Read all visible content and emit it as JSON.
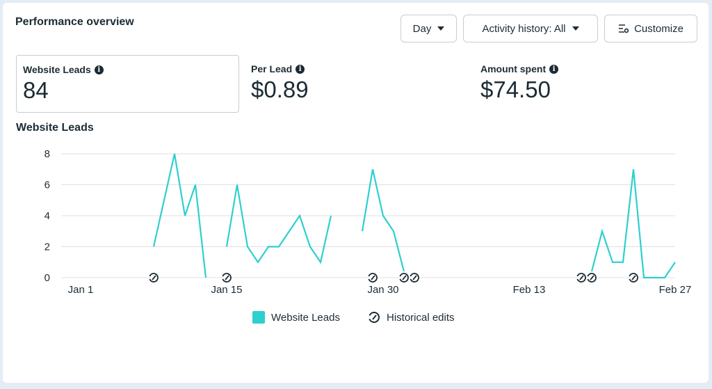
{
  "header": {
    "title": "Performance overview",
    "day_label": "Day",
    "activity_label": "Activity history: All",
    "customize_label": "Customize"
  },
  "metrics": [
    {
      "label": "Website Leads",
      "value": "84"
    },
    {
      "label": "Per Lead",
      "value": "$0.89"
    },
    {
      "label": "Amount spent",
      "value": "$74.50"
    }
  ],
  "chart_title": "Website Leads",
  "colors": {
    "line": "#2ecfcf",
    "grid": "#dddfe2",
    "text": "#1c2b33"
  },
  "legend": {
    "leads": "Website Leads",
    "edits": "Historical edits"
  },
  "chart_data": {
    "type": "line",
    "title": "Website Leads",
    "xlabel": "",
    "ylabel": "",
    "ylim": [
      0,
      8
    ],
    "yticks": [
      0,
      2,
      4,
      6,
      8
    ],
    "xticks": [
      {
        "day": 0,
        "label": "Jan 1"
      },
      {
        "day": 14,
        "label": "Jan 15"
      },
      {
        "day": 29,
        "label": "Jan 30"
      },
      {
        "day": 43,
        "label": "Feb 13"
      },
      {
        "day": 57,
        "label": "Feb 27"
      }
    ],
    "series": [
      {
        "name": "Website Leads",
        "segments": [
          [
            [
              7,
              2
            ],
            [
              9,
              8
            ],
            [
              10,
              4
            ],
            [
              11,
              6
            ],
            [
              12,
              0
            ]
          ],
          [
            [
              14,
              2
            ],
            [
              15,
              6
            ],
            [
              16,
              2
            ],
            [
              17,
              1
            ],
            [
              18,
              2
            ],
            [
              19,
              2
            ],
            [
              20,
              3
            ],
            [
              21,
              4
            ],
            [
              22,
              2
            ],
            [
              23,
              1
            ],
            [
              24,
              4
            ]
          ],
          [
            [
              27,
              3
            ],
            [
              28,
              7
            ],
            [
              29,
              4
            ],
            [
              30,
              3
            ],
            [
              31,
              0.4
            ]
          ],
          [
            [
              49,
              0.4
            ],
            [
              50,
              3
            ],
            [
              51,
              1
            ],
            [
              52,
              1
            ],
            [
              53,
              7
            ],
            [
              54,
              0
            ],
            [
              55,
              0
            ],
            [
              56,
              0
            ],
            [
              57,
              1
            ]
          ]
        ]
      }
    ],
    "historical_edits": [
      7,
      14,
      28,
      31,
      32,
      48,
      49,
      53
    ]
  }
}
